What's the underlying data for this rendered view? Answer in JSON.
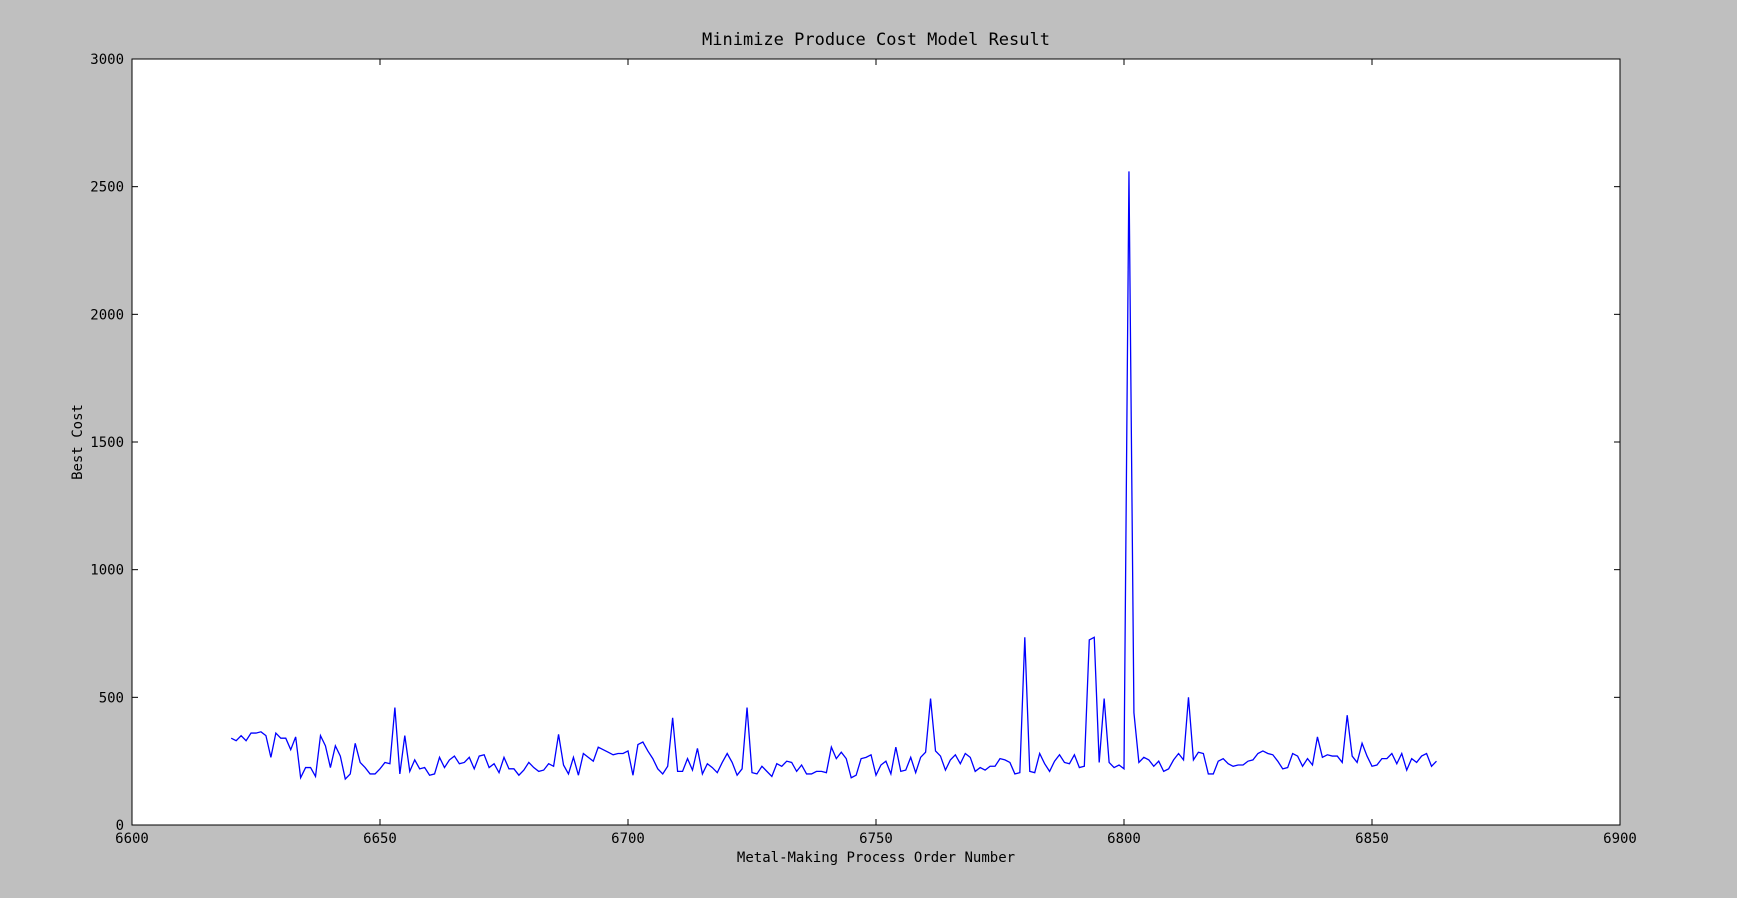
{
  "chart_data": {
    "type": "line",
    "title": "Minimize Produce Cost Model Result",
    "xlabel": "Metal-Making Process Order Number",
    "ylabel": "Best Cost",
    "xlim": [
      6600,
      6900
    ],
    "xticks": [
      6600,
      6650,
      6700,
      6750,
      6800,
      6850,
      6900
    ],
    "ylim": [
      0,
      3000
    ],
    "yticks": [
      0,
      500,
      1000,
      1500,
      2000,
      2500,
      3000
    ],
    "series": [
      {
        "name": "Best Cost",
        "color": "#0000ff",
        "x": [
          6620,
          6621,
          6622,
          6623,
          6624,
          6625,
          6626,
          6627,
          6628,
          6629,
          6630,
          6631,
          6632,
          6633,
          6634,
          6635,
          6636,
          6637,
          6638,
          6639,
          6640,
          6641,
          6642,
          6643,
          6644,
          6645,
          6646,
          6647,
          6648,
          6649,
          6650,
          6651,
          6652,
          6653,
          6654,
          6655,
          6656,
          6657,
          6658,
          6659,
          6660,
          6661,
          6662,
          6663,
          6664,
          6665,
          6666,
          6667,
          6668,
          6669,
          6670,
          6671,
          6672,
          6673,
          6674,
          6675,
          6676,
          6677,
          6678,
          6679,
          6680,
          6681,
          6682,
          6683,
          6684,
          6685,
          6686,
          6687,
          6688,
          6689,
          6690,
          6691,
          6692,
          6693,
          6694,
          6695,
          6696,
          6697,
          6698,
          6699,
          6700,
          6701,
          6702,
          6703,
          6704,
          6705,
          6706,
          6707,
          6708,
          6709,
          6710,
          6711,
          6712,
          6713,
          6714,
          6715,
          6716,
          6717,
          6718,
          6719,
          6720,
          6721,
          6722,
          6723,
          6724,
          6725,
          6726,
          6727,
          6728,
          6729,
          6730,
          6731,
          6732,
          6733,
          6734,
          6735,
          6736,
          6737,
          6738,
          6739,
          6740,
          6741,
          6742,
          6743,
          6744,
          6745,
          6746,
          6747,
          6748,
          6749,
          6750,
          6751,
          6752,
          6753,
          6754,
          6755,
          6756,
          6757,
          6758,
          6759,
          6760,
          6761,
          6762,
          6763,
          6764,
          6765,
          6766,
          6767,
          6768,
          6769,
          6770,
          6771,
          6772,
          6773,
          6774,
          6775,
          6776,
          6777,
          6778,
          6779,
          6780,
          6781,
          6782,
          6783,
          6784,
          6785,
          6786,
          6787,
          6788,
          6789,
          6790,
          6791,
          6792,
          6793,
          6794,
          6795,
          6796,
          6797,
          6798,
          6799,
          6800,
          6801,
          6802,
          6803,
          6804,
          6805,
          6806,
          6807,
          6808,
          6809,
          6810,
          6811,
          6812,
          6813,
          6814,
          6815,
          6816,
          6817,
          6818,
          6819,
          6820,
          6821,
          6822,
          6823,
          6824,
          6825,
          6826,
          6827,
          6828,
          6829,
          6830,
          6831,
          6832,
          6833,
          6834,
          6835,
          6836,
          6837,
          6838,
          6839,
          6840,
          6841,
          6842,
          6843,
          6844,
          6845,
          6846,
          6847,
          6848,
          6849,
          6850,
          6851,
          6852,
          6853,
          6854,
          6855,
          6856,
          6857,
          6858,
          6859,
          6860,
          6861,
          6862,
          6863
        ],
        "values": [
          340,
          330,
          350,
          330,
          360,
          360,
          365,
          350,
          265,
          360,
          340,
          340,
          295,
          345,
          185,
          225,
          225,
          190,
          350,
          310,
          225,
          310,
          270,
          180,
          200,
          320,
          245,
          225,
          200,
          200,
          220,
          245,
          240,
          460,
          200,
          350,
          210,
          255,
          220,
          225,
          195,
          200,
          265,
          225,
          255,
          270,
          240,
          245,
          265,
          220,
          270,
          275,
          225,
          240,
          205,
          265,
          220,
          220,
          195,
          215,
          245,
          225,
          210,
          215,
          240,
          230,
          355,
          235,
          200,
          265,
          195,
          280,
          265,
          250,
          305,
          295,
          285,
          275,
          280,
          280,
          290,
          195,
          315,
          325,
          290,
          260,
          220,
          200,
          230,
          420,
          210,
          210,
          260,
          215,
          300,
          200,
          240,
          225,
          205,
          245,
          280,
          245,
          195,
          220,
          460,
          205,
          200,
          230,
          210,
          190,
          240,
          230,
          250,
          245,
          210,
          235,
          200,
          200,
          210,
          210,
          205,
          305,
          260,
          285,
          260,
          185,
          195,
          260,
          265,
          275,
          195,
          235,
          250,
          200,
          305,
          210,
          215,
          265,
          205,
          265,
          285,
          495,
          290,
          270,
          215,
          255,
          275,
          240,
          280,
          265,
          210,
          225,
          215,
          230,
          230,
          260,
          255,
          245,
          200,
          205,
          735,
          210,
          205,
          280,
          240,
          210,
          250,
          275,
          245,
          240,
          275,
          225,
          230,
          725,
          735,
          245,
          495,
          245,
          225,
          235,
          220,
          2560,
          440,
          245,
          265,
          255,
          230,
          250,
          210,
          220,
          255,
          280,
          255,
          500,
          255,
          285,
          280,
          200,
          200,
          250,
          260,
          240,
          230,
          235,
          235,
          250,
          255,
          280,
          290,
          280,
          275,
          250,
          220,
          225,
          280,
          270,
          230,
          260,
          235,
          345,
          265,
          275,
          270,
          270,
          245,
          430,
          270,
          245,
          320,
          270,
          230,
          235,
          260,
          260,
          280,
          240,
          280,
          215,
          260,
          245,
          270,
          280,
          230,
          250
        ]
      }
    ]
  }
}
